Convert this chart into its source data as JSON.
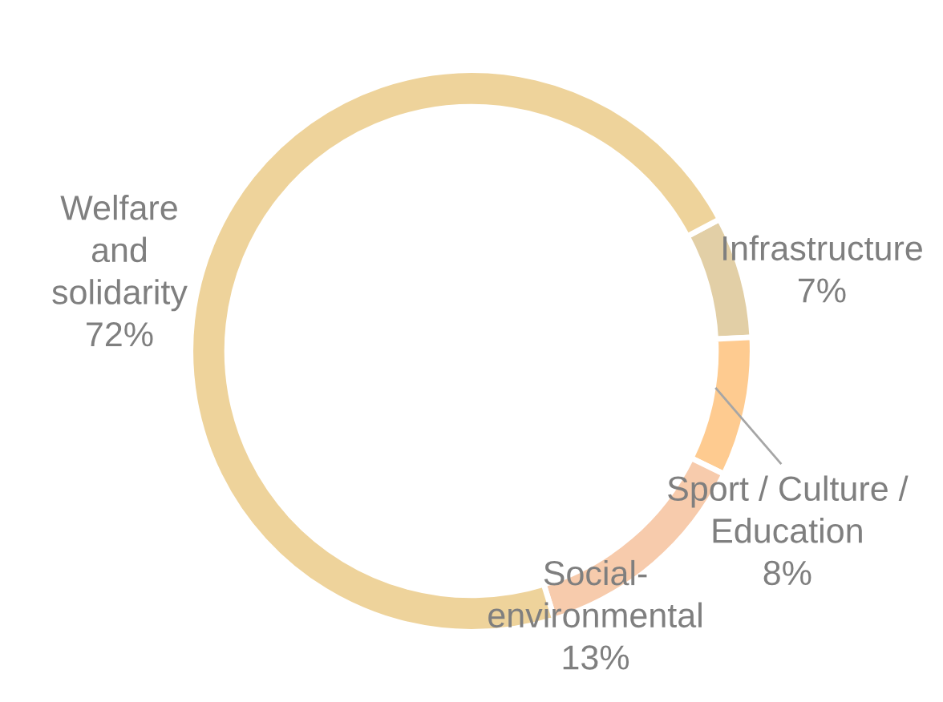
{
  "chart_data": {
    "type": "donut",
    "categories": [
      "Infrastructure",
      "Sport / Culture /\nEducation",
      "Social-\nenvironmental",
      "Welfare\nand\nsolidarity"
    ],
    "values": [
      7,
      8,
      13,
      72
    ],
    "colors": [
      "#e2cfa6",
      "#fecb90",
      "#f7cbac",
      "#eed39b"
    ],
    "value_labels": [
      "7%",
      "8%",
      "13%",
      "72%"
    ],
    "legend": false
  }
}
